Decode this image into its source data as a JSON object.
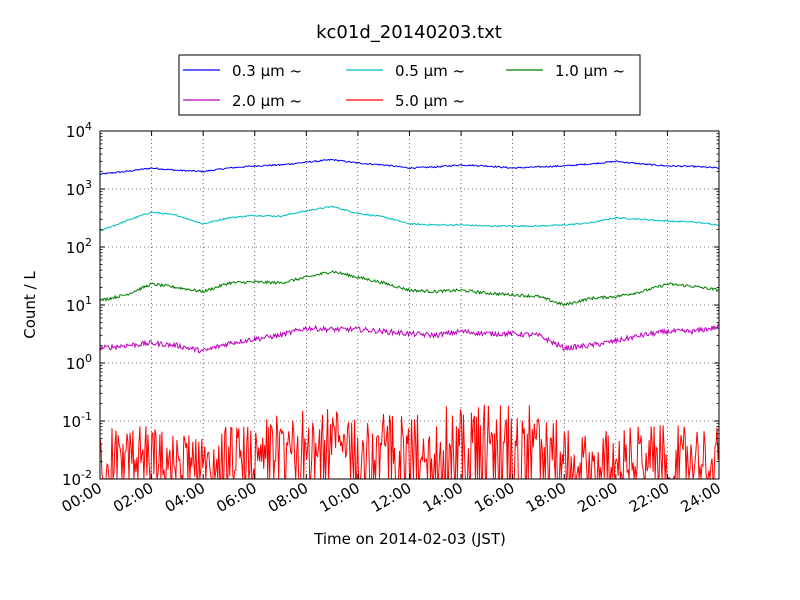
{
  "chart_data": {
    "type": "line",
    "title": "kc01d_20140203.txt",
    "xlabel": "Time on 2014-02-03 (JST)",
    "ylabel": "Count / L",
    "yscale": "log",
    "ylim": [
      0.01,
      10000
    ],
    "xlim": [
      "00:00",
      "24:00"
    ],
    "x_ticks": [
      "00:00",
      "02:00",
      "04:00",
      "06:00",
      "08:00",
      "10:00",
      "12:00",
      "14:00",
      "16:00",
      "18:00",
      "20:00",
      "22:00",
      "24:00"
    ],
    "y_ticks": [
      {
        "base": "10",
        "exp": "-2",
        "value": 0.01
      },
      {
        "base": "10",
        "exp": "-1",
        "value": 0.1
      },
      {
        "base": "10",
        "exp": "0",
        "value": 1
      },
      {
        "base": "10",
        "exp": "1",
        "value": 10
      },
      {
        "base": "10",
        "exp": "2",
        "value": 100
      },
      {
        "base": "10",
        "exp": "3",
        "value": 1000
      },
      {
        "base": "10",
        "exp": "4",
        "value": 10000
      }
    ],
    "grid": true,
    "legend_position": "top-center",
    "x": [
      "00:00",
      "01:00",
      "02:00",
      "03:00",
      "04:00",
      "05:00",
      "06:00",
      "07:00",
      "08:00",
      "09:00",
      "10:00",
      "11:00",
      "12:00",
      "13:00",
      "14:00",
      "15:00",
      "16:00",
      "17:00",
      "18:00",
      "19:00",
      "20:00",
      "21:00",
      "22:00",
      "23:00",
      "24:00"
    ],
    "series": [
      {
        "name": "0.3 μm ~",
        "color": "#0000ff",
        "values": [
          1800,
          2000,
          2300,
          2100,
          2000,
          2300,
          2500,
          2600,
          2900,
          3200,
          2800,
          2600,
          2300,
          2400,
          2600,
          2500,
          2300,
          2400,
          2500,
          2700,
          3000,
          2700,
          2500,
          2450,
          2300
        ]
      },
      {
        "name": "0.5 μm ~",
        "color": "#00bfbf",
        "values": [
          190,
          280,
          400,
          350,
          250,
          320,
          350,
          340,
          420,
          500,
          380,
          330,
          250,
          240,
          240,
          230,
          230,
          230,
          240,
          260,
          320,
          300,
          280,
          270,
          240
        ]
      },
      {
        "name": "1.0 μm ~",
        "color": "#008000",
        "values": [
          12,
          15,
          23,
          20,
          17,
          24,
          25,
          24,
          30,
          38,
          30,
          24,
          18,
          17,
          18,
          16,
          15,
          14,
          10,
          13,
          14,
          17,
          23,
          21,
          18
        ]
      },
      {
        "name": "2.0 μm ~",
        "color": "#bf00bf",
        "values": [
          1.8,
          2.0,
          2.2,
          2.0,
          1.6,
          2.2,
          2.6,
          3.0,
          4.0,
          3.8,
          3.8,
          3.5,
          3.2,
          3.0,
          3.5,
          3.2,
          3.2,
          3.0,
          1.8,
          2.0,
          2.4,
          3.0,
          3.5,
          3.5,
          4.2
        ]
      },
      {
        "name": "5.0 μm ~",
        "color": "#ff0000",
        "values": [
          0.03,
          0.03,
          0.03,
          0.02,
          0.03,
          0.03,
          0.03,
          0.05,
          0.06,
          0.06,
          0.05,
          0.05,
          0.05,
          0.06,
          0.07,
          0.08,
          0.1,
          0.06,
          0.03,
          0.02,
          0.03,
          0.03,
          0.03,
          0.03,
          0.03
        ]
      }
    ]
  }
}
